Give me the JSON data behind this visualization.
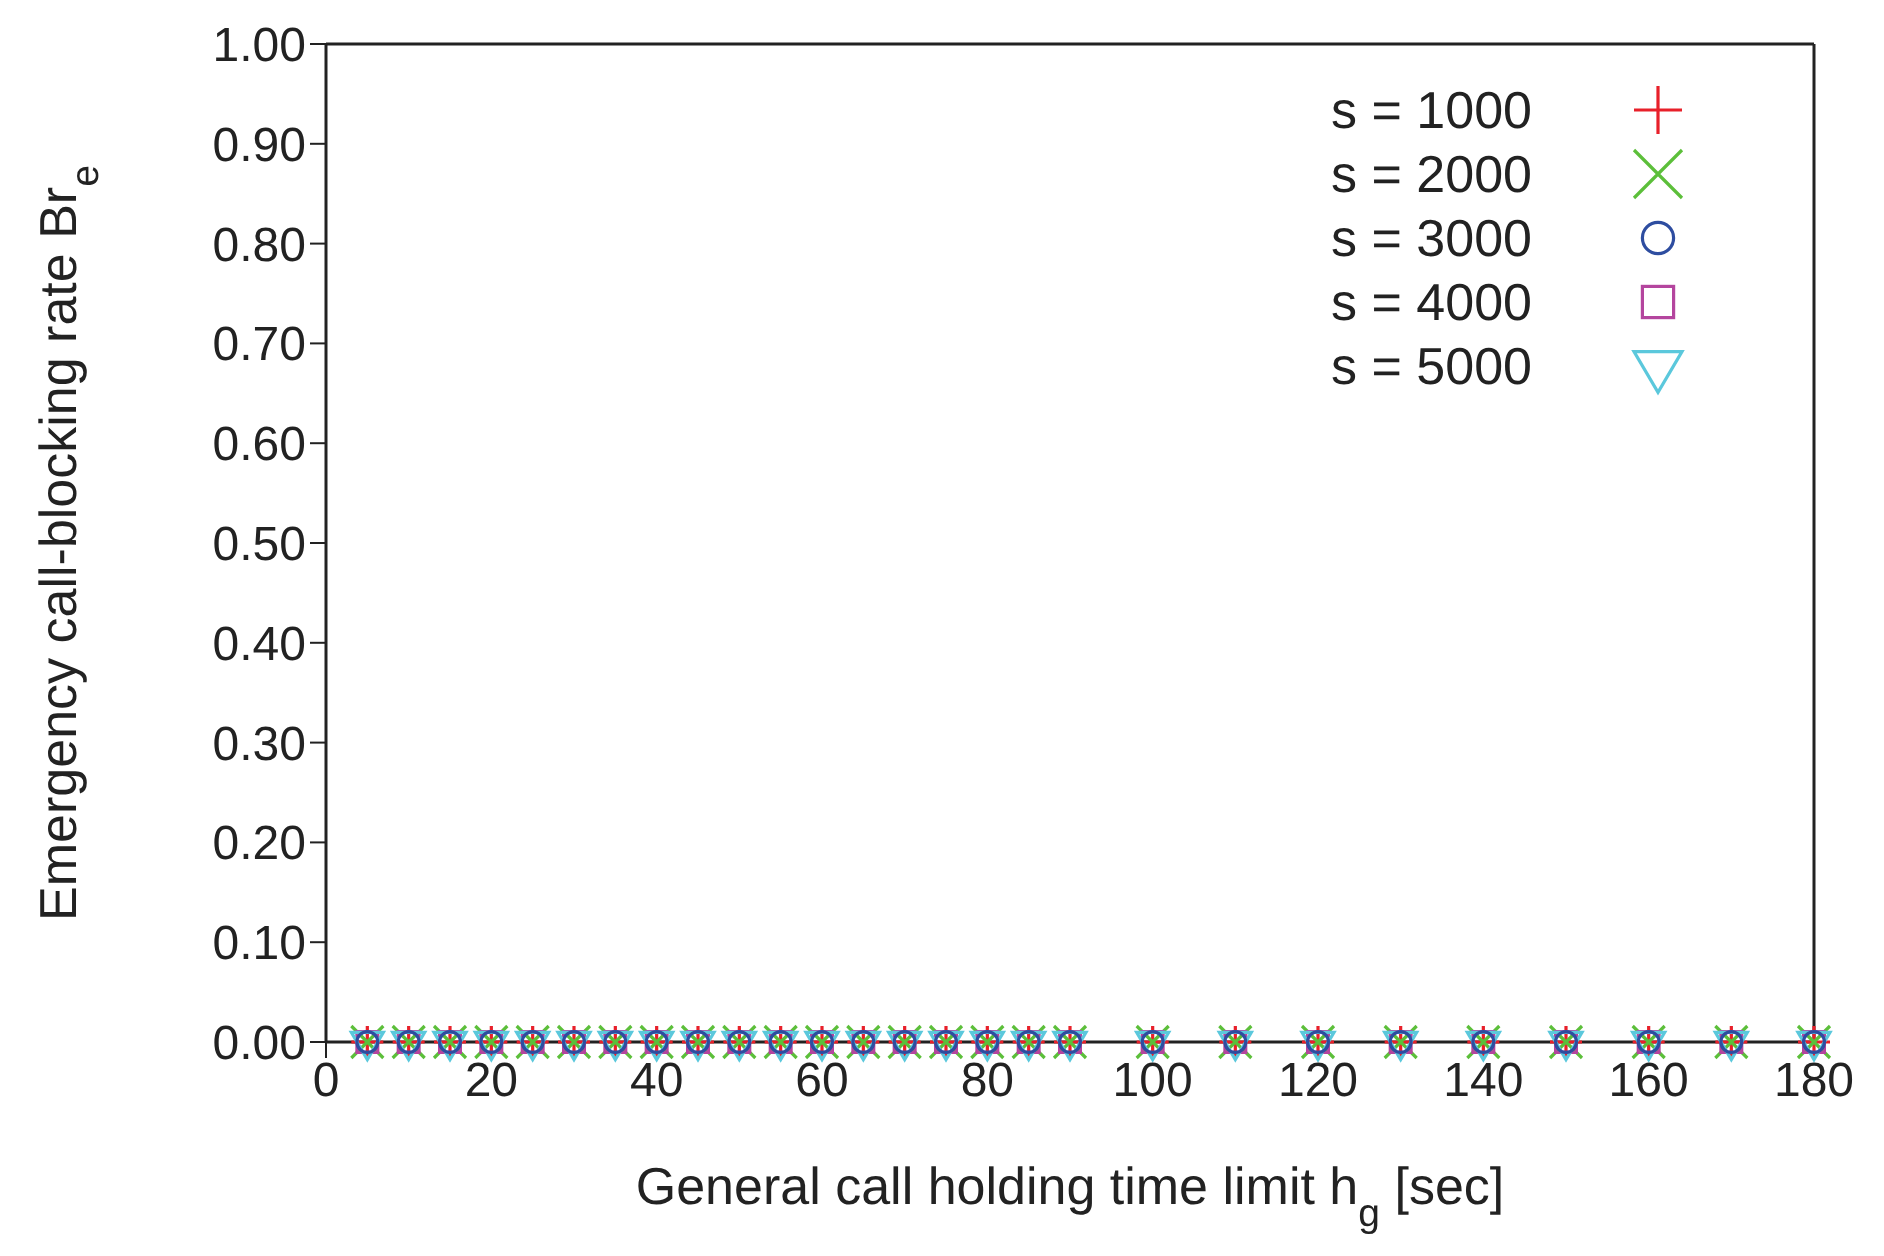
{
  "chart_data": {
    "type": "scatter",
    "xlabel": "General call holding time limit h$_{g}$ [sec]",
    "ylabel": "Emergency call-blocking rate Br$_{e}$",
    "x": [
      5,
      10,
      15,
      20,
      25,
      30,
      35,
      40,
      45,
      50,
      55,
      60,
      65,
      70,
      75,
      80,
      85,
      90,
      100,
      110,
      120,
      130,
      140,
      150,
      160,
      170,
      180
    ],
    "series": [
      {
        "name": "s = 1000",
        "color": "#e8202a",
        "marker": "plus",
        "values": [
          0,
          0,
          0,
          0,
          0,
          0,
          0,
          0,
          0,
          0,
          0,
          0,
          0,
          0,
          0,
          0,
          0,
          0,
          0,
          0,
          0,
          0,
          0,
          0,
          0,
          0,
          0
        ]
      },
      {
        "name": "s = 2000",
        "color": "#5cbf3a",
        "marker": "cross",
        "values": [
          0,
          0,
          0,
          0,
          0,
          0,
          0,
          0,
          0,
          0,
          0,
          0,
          0,
          0,
          0,
          0,
          0,
          0,
          0,
          0,
          0,
          0,
          0,
          0,
          0,
          0,
          0
        ]
      },
      {
        "name": "s = 3000",
        "color": "#2e4da0",
        "marker": "circle",
        "values": [
          0,
          0,
          0,
          0,
          0,
          0,
          0,
          0,
          0,
          0,
          0,
          0,
          0,
          0,
          0,
          0,
          0,
          0,
          0,
          0,
          0,
          0,
          0,
          0,
          0,
          0,
          0
        ]
      },
      {
        "name": "s = 4000",
        "color": "#b4459e",
        "marker": "square",
        "values": [
          0,
          0,
          0,
          0,
          0,
          0,
          0,
          0,
          0,
          0,
          0,
          0,
          0,
          0,
          0,
          0,
          0,
          0,
          0,
          0,
          0,
          0,
          0,
          0,
          0,
          0,
          0
        ]
      },
      {
        "name": "s = 5000",
        "color": "#5bc8dc",
        "marker": "triangle",
        "values": [
          0,
          0,
          0,
          0,
          0,
          0,
          0,
          0,
          0,
          0,
          0,
          0,
          0,
          0,
          0,
          0,
          0,
          0,
          0,
          0,
          0,
          0,
          0,
          0,
          0,
          0,
          0
        ]
      }
    ],
    "xlim": [
      0,
      180
    ],
    "xticks": [
      0,
      20,
      40,
      60,
      80,
      100,
      120,
      140,
      160,
      180
    ],
    "ylim": [
      0,
      1
    ],
    "yticks": [
      {
        "value": 0,
        "label": "0.00"
      },
      {
        "value": 0.1,
        "label": "0.10"
      },
      {
        "value": 0.2,
        "label": "0.20"
      },
      {
        "value": 0.3,
        "label": "0.30"
      },
      {
        "value": 0.4,
        "label": "0.40"
      },
      {
        "value": 0.5,
        "label": "0.50"
      },
      {
        "value": 0.6,
        "label": "0.60"
      },
      {
        "value": 0.7,
        "label": "0.70"
      },
      {
        "value": 0.8,
        "label": "0.80"
      },
      {
        "value": 0.9,
        "label": "0.90"
      },
      {
        "value": 1,
        "label": "1.00"
      }
    ],
    "grid": false,
    "legend": "top right"
  }
}
